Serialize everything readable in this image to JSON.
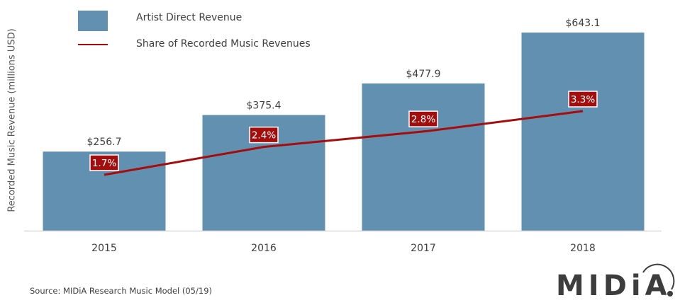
{
  "chart_data": {
    "type": "bar",
    "title": "",
    "xlabel": "",
    "ylabel": "Recorded Music Revenue (millions USD)",
    "categories": [
      "2015",
      "2016",
      "2017",
      "2018"
    ],
    "series": [
      {
        "name": "Artist Direct Revenue",
        "type": "bar",
        "values": [
          256.7,
          375.4,
          477.9,
          643.1
        ],
        "labels": [
          "$256.7",
          "$375.4",
          "$477.9",
          "$643.1"
        ],
        "color": "#6190B0"
      },
      {
        "name": "Share of Recorded Music Revenues",
        "type": "line",
        "values": [
          1.7,
          2.4,
          2.8,
          3.3
        ],
        "labels": [
          "1.7%",
          "2.4%",
          "2.8%",
          "3.3%"
        ],
        "color": "#A50D0D"
      }
    ],
    "ylim": [
      0,
      643.1
    ],
    "secondary_ylim": [
      1.7,
      3.3
    ],
    "grid": false,
    "legend": "top-left",
    "source": "Source: MIDiA Research Music Model (05/19)"
  },
  "logo": {
    "text": "MIDiA."
  },
  "colors": {
    "bar": "#6190B0",
    "line": "#A50D0D",
    "axis": "#D9D9D9",
    "text": "#404040"
  }
}
